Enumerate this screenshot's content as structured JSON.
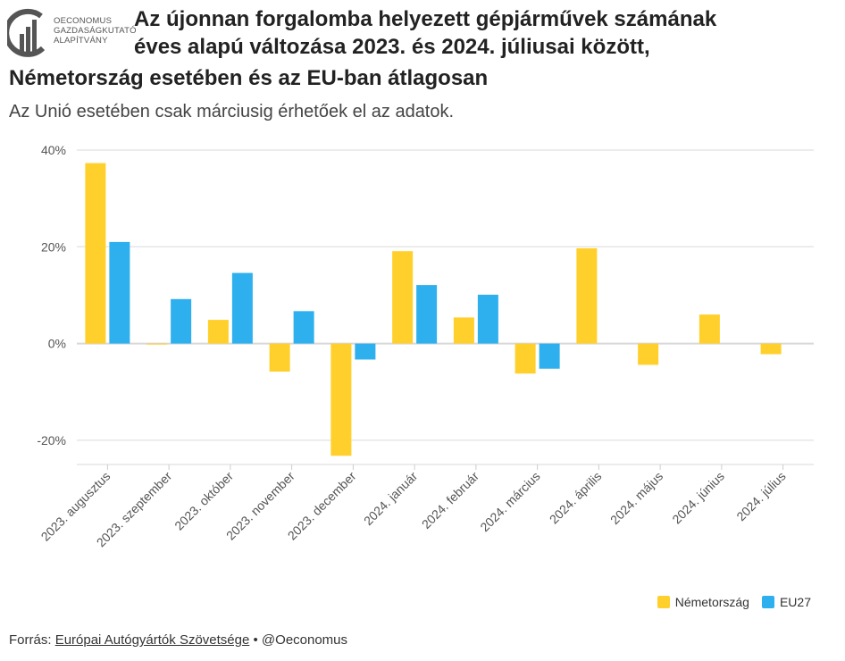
{
  "logo": {
    "line1": "OECONOMUS",
    "line2": "GAZDASÁGKUTATÓ",
    "line3": "ALAPÍTVÁNY"
  },
  "title_line1": "Az újonnan forgalomba helyezett gépjárművek számának",
  "title_line2": "éves alapú változása 2023. és 2024. júliusai között,",
  "title_line3": "Németország esetében és az EU-ban átlagosan",
  "subtitle": "Az Unió esetében csak márciusig érhetőek el az adatok.",
  "source": {
    "prefix": "Forrás:",
    "link": "Európai Autógyártók Szövetsége",
    "suffix": "• @Oeconomus"
  },
  "colors": {
    "germany": "#FFD02B",
    "eu": "#2FB0EE",
    "grid": "#e6e6e6",
    "text": "#555555"
  },
  "chart_data": {
    "type": "bar",
    "categories": [
      "2023. augusztus",
      "2023. szeptember",
      "2023. október",
      "2023. november",
      "2023. december",
      "2024. január",
      "2024. február",
      "2024. március",
      "2024. április",
      "2024. május",
      "2024. június",
      "2024. július"
    ],
    "series": [
      {
        "name": "Németország",
        "values": [
          37.3,
          -0.2,
          4.9,
          -5.8,
          -23.2,
          19.1,
          5.4,
          -6.2,
          19.7,
          -4.4,
          6.0,
          -2.2
        ]
      },
      {
        "name": "EU27",
        "values": [
          21.0,
          9.2,
          14.6,
          6.7,
          -3.3,
          12.1,
          10.1,
          -5.2,
          null,
          null,
          null,
          null
        ]
      }
    ],
    "yticks": [
      "-20%",
      "0%",
      "20%",
      "40%"
    ],
    "ylim": [
      -25,
      40
    ],
    "grid": true,
    "legend": "bottom-right"
  }
}
